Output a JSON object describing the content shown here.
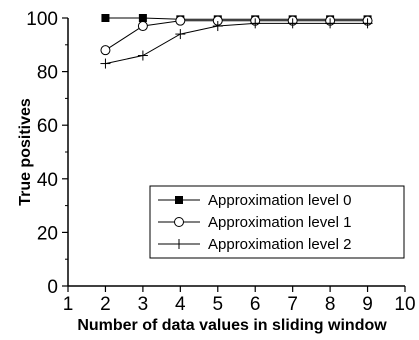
{
  "chart_data": {
    "type": "line",
    "title": "",
    "xlabel": "Number of data values in sliding window",
    "ylabel": "True positives",
    "xlim": [
      1,
      10
    ],
    "ylim": [
      0,
      100
    ],
    "xticks": [
      1,
      2,
      3,
      4,
      5,
      6,
      7,
      8,
      9,
      10
    ],
    "yticks": [
      0,
      20,
      40,
      60,
      80,
      100
    ],
    "grid": false,
    "legend_position": "bottom-right",
    "x": [
      2,
      3,
      4,
      5,
      6,
      7,
      8,
      9
    ],
    "series": [
      {
        "name": "Approximation level 0",
        "marker": "filled-square",
        "values": [
          100,
          100,
          99.5,
          99.5,
          99.5,
          99.5,
          99.5,
          99.5
        ]
      },
      {
        "name": "Approximation level 1",
        "marker": "open-circle",
        "values": [
          88,
          97,
          99,
          99,
          99,
          99,
          99,
          99
        ]
      },
      {
        "name": "Approximation level 2",
        "marker": "plus",
        "values": [
          83,
          86,
          94,
          97,
          98,
          98,
          98,
          98
        ]
      }
    ]
  }
}
